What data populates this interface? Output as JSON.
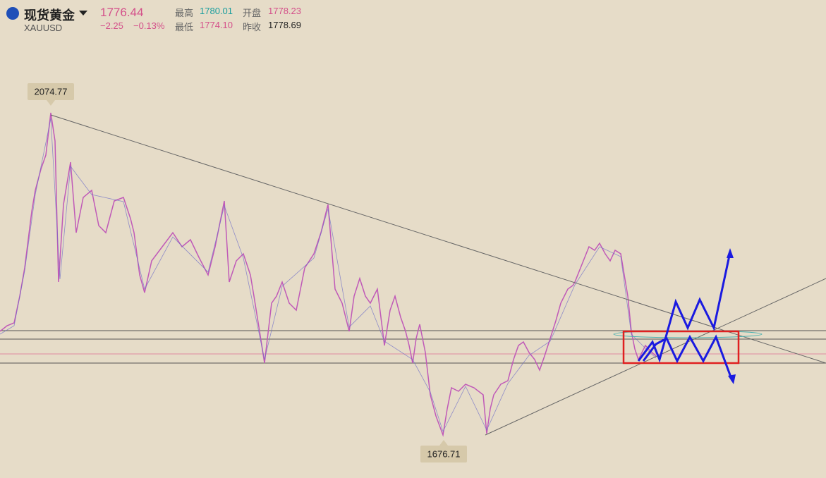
{
  "header": {
    "name": "现货黄金",
    "symbol": "XAUUSD",
    "price": "1776.44",
    "change": "−2.25",
    "change_pct": "−0.13%",
    "stats": [
      {
        "label": "最高",
        "value": "1780.01"
      },
      {
        "label": "开盘",
        "value": "1778.23"
      },
      {
        "label": "最低",
        "value": "1774.10"
      },
      {
        "label": "昨收",
        "value": "1778.69"
      }
    ]
  },
  "annotations": {
    "high": "2074.77",
    "low": "1676.71"
  }
}
